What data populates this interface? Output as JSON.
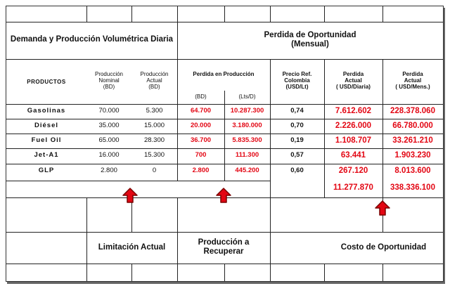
{
  "section_headers": {
    "left": "Demanda y Producción Volumétrica Diaria",
    "right_title": "Perdida de Oportunidad",
    "right_subtitle": "(Mensual)"
  },
  "columns": {
    "productos": "PRODUCTOS",
    "nominal_l1": "Producción",
    "nominal_l2": "Nominal",
    "nominal_unit": "(BD)",
    "actual_l1": "Producción",
    "actual_l2": "Actual",
    "actual_unit": "(BD)",
    "perdida_prod": "Perdida en Producción",
    "perdida_bd": "(BD)",
    "perdida_lts": "(Lts/D)",
    "precio_l1": "Precio Ref.",
    "precio_l2": "Colombia",
    "precio_l3": "(USD/Lt)",
    "pd_l1": "Perdida",
    "pd_l2": "Actual",
    "pd_l3": "( USD/Diaria)",
    "pm_l1": "Perdida",
    "pm_l2": "Actual",
    "pm_l3": "( USD/Mens.)"
  },
  "rows": [
    {
      "producto": "Gasolinas",
      "nominal": "70.000",
      "actual": "5.300",
      "perdida_bd": "64.700",
      "perdida_lts": "10.287.300",
      "precio": "0,74",
      "usd_diaria": "7.612.602",
      "usd_mens": "228.378.060"
    },
    {
      "producto": "Diésel",
      "nominal": "35.000",
      "actual": "15.000",
      "perdida_bd": "20.000",
      "perdida_lts": "3.180.000",
      "precio": "0,70",
      "usd_diaria": "2.226.000",
      "usd_mens": "66.780.000"
    },
    {
      "producto": "Fuel Oil",
      "nominal": "65.000",
      "actual": "28.300",
      "perdida_bd": "36.700",
      "perdida_lts": "5.835.300",
      "precio": "0,19",
      "usd_diaria": "1.108.707",
      "usd_mens": "33.261.210"
    },
    {
      "producto": "Jet-A1",
      "nominal": "16.000",
      "actual": "15.300",
      "perdida_bd": "700",
      "perdida_lts": "111.300",
      "precio": "0,57",
      "usd_diaria": "63.441",
      "usd_mens": "1.903.230"
    },
    {
      "producto": "GLP",
      "nominal": "2.800",
      "actual": "0",
      "perdida_bd": "2.800",
      "perdida_lts": "445.200",
      "precio": "0,60",
      "usd_diaria": "267.120",
      "usd_mens": "8.013.600"
    }
  ],
  "totals": {
    "usd_diaria": "11.277.870",
    "usd_mens": "338.336.100"
  },
  "bottom_labels": {
    "limitacion": "Limitación Actual",
    "recuperar_l1": "Producción a",
    "recuperar_l2": "Recuperar",
    "costo": "Costo de Oportunidad"
  },
  "colors": {
    "accent_red": "#e30613",
    "arrow_fill": "#e30613",
    "arrow_stroke": "#7a0000"
  }
}
